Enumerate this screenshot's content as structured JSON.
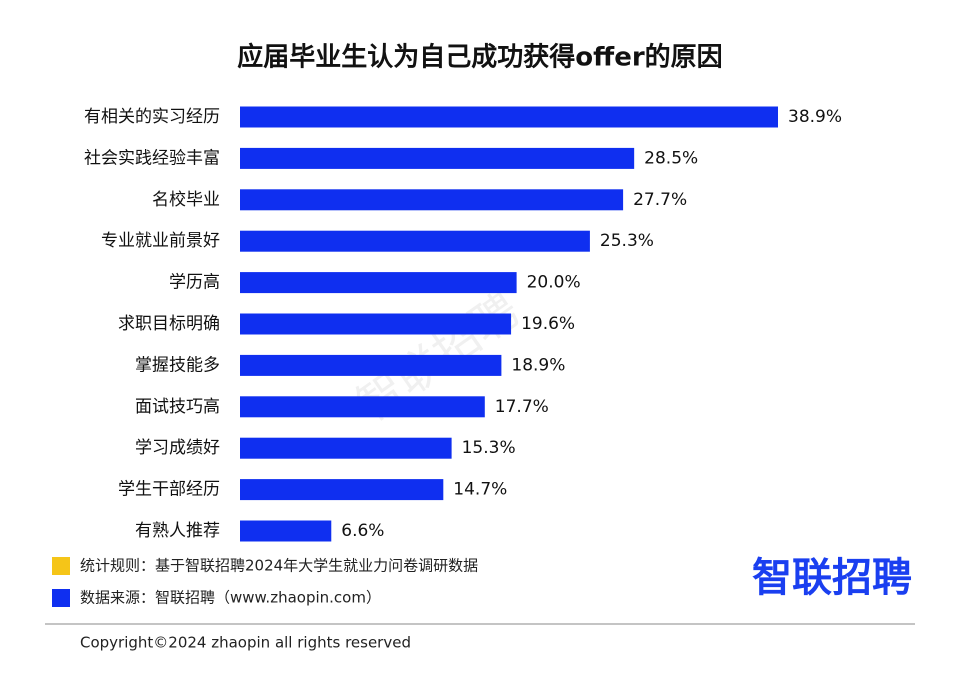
{
  "chart_data": {
    "type": "hbar",
    "title": "应届毕业生认为自己成功获得offer的原因",
    "categories": [
      "有相关的实习经历",
      "社会实践经验丰富",
      "名校毕业",
      "专业就业前景好",
      "学历高",
      "求职目标明确",
      "掌握技能多",
      "面试技巧高",
      "学习成绩好",
      "学生干部经历",
      "有熟人推荐"
    ],
    "values": [
      38.9,
      28.5,
      27.7,
      25.3,
      20.0,
      19.6,
      18.9,
      17.7,
      15.3,
      14.7,
      6.6
    ],
    "value_labels": [
      "38.9%",
      "28.5%",
      "27.7%",
      "25.3%",
      "20.0%",
      "19.6%",
      "18.9%",
      "17.7%",
      "15.3%",
      "14.7%",
      "6.6%"
    ],
    "color": "#0f2ff0",
    "notes": [
      {
        "text": "统计规则：基于智联招聘2024年大学生就业力问卷调研数据",
        "color": "#f5c518"
      },
      {
        "text": "数据来源：智联招聘（www.zhaopin.com）",
        "color": "#0f2ff0"
      }
    ]
  },
  "footer": {
    "logo": "智联招聘",
    "watermark": "智联招聘",
    "copyright": "Copyright©2024 zhaopin all rights reserved"
  }
}
